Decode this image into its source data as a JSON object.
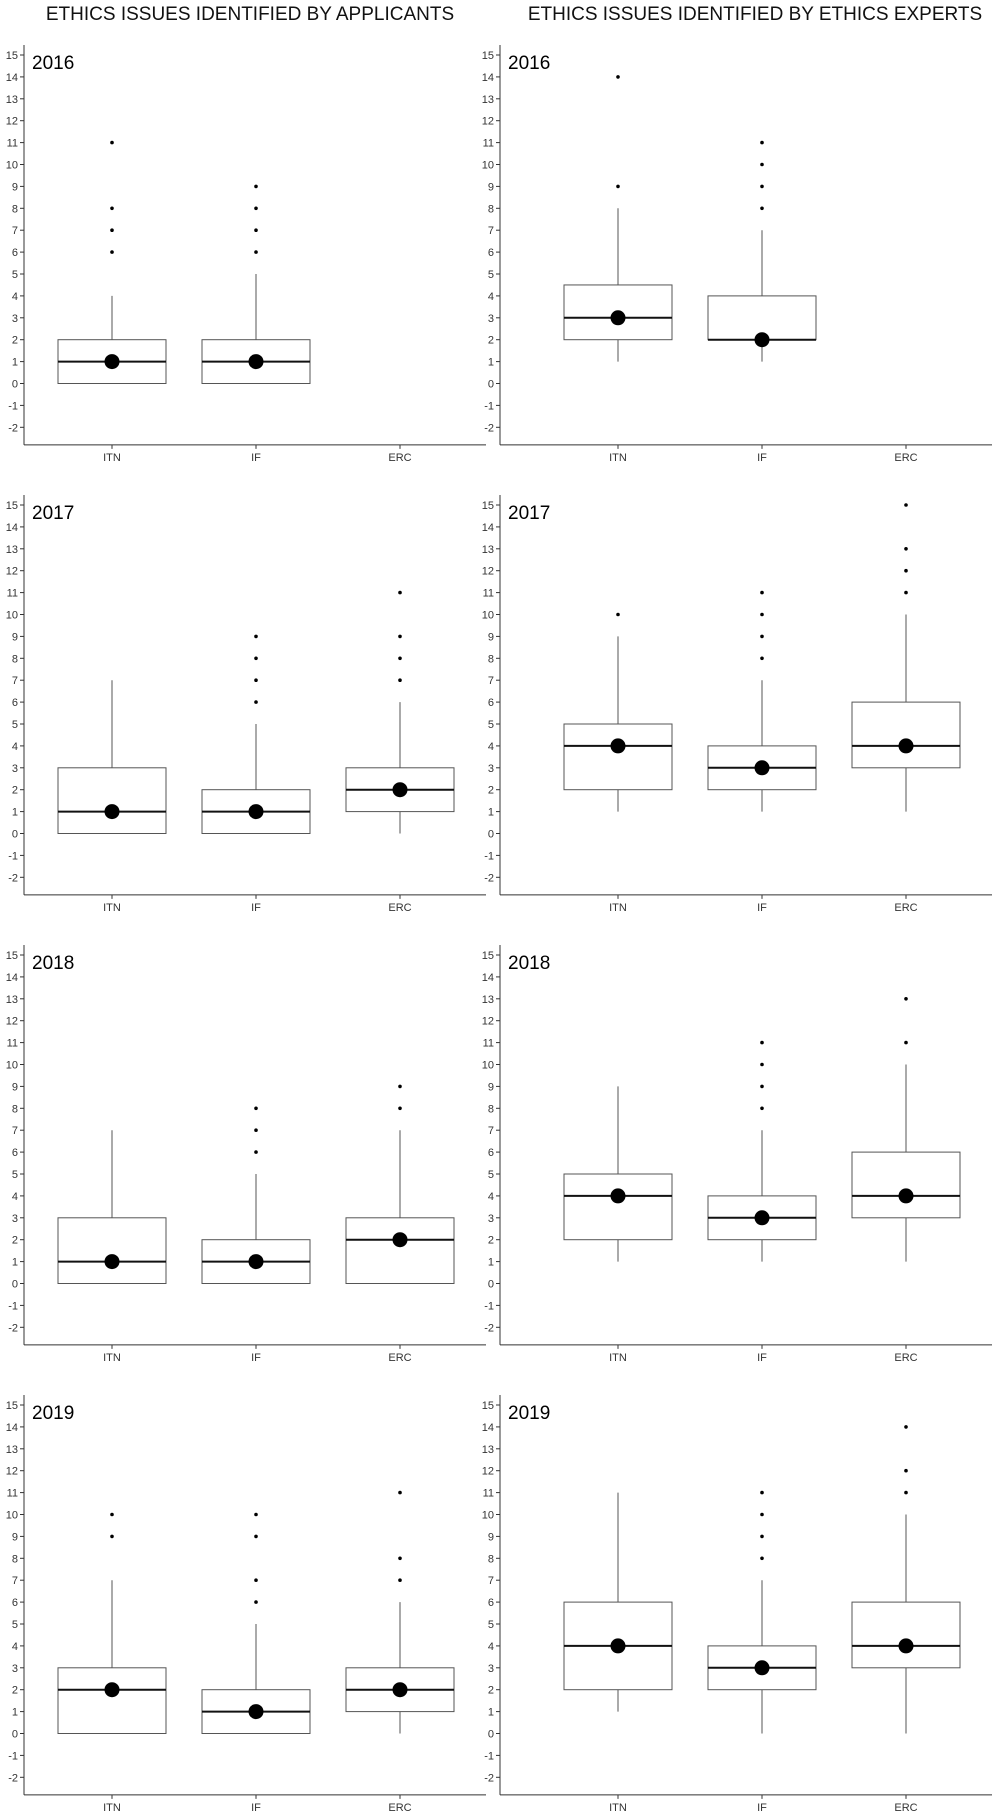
{
  "columns": [
    {
      "title": "ETHICS ISSUES IDENTIFIED BY APPLICANTS"
    },
    {
      "title": "ETHICS ISSUES IDENTIFIED BY ETHICS EXPERTS"
    }
  ],
  "chart_data": [
    {
      "type": "box",
      "column": 0,
      "year": "2016",
      "categories": [
        "ITN",
        "IF",
        "ERC"
      ],
      "ylim": [
        -2,
        15
      ],
      "boxes": [
        {
          "category": "ITN",
          "q1": 0,
          "median": 1,
          "q3": 2,
          "whisker_low": 0,
          "whisker_high": 4,
          "mean": 1,
          "outliers": [
            6,
            7,
            8,
            11
          ]
        },
        {
          "category": "IF",
          "q1": 0,
          "median": 1,
          "q3": 2,
          "whisker_low": 0,
          "whisker_high": 5,
          "mean": 1,
          "outliers": [
            6,
            7,
            8,
            9
          ]
        }
      ]
    },
    {
      "type": "box",
      "column": 1,
      "year": "2016",
      "categories": [
        "ITN",
        "IF",
        "ERC"
      ],
      "ylim": [
        -2,
        15
      ],
      "boxes": [
        {
          "category": "ITN",
          "q1": 2,
          "median": 3,
          "q3": 4.5,
          "whisker_low": 1,
          "whisker_high": 8,
          "mean": 3,
          "outliers": [
            9,
            14
          ]
        },
        {
          "category": "IF",
          "q1": 2,
          "median": 2,
          "q3": 4,
          "whisker_low": 1,
          "whisker_high": 7,
          "mean": 2,
          "outliers": [
            8,
            9,
            10,
            11
          ]
        }
      ]
    },
    {
      "type": "box",
      "column": 0,
      "year": "2017",
      "categories": [
        "ITN",
        "IF",
        "ERC"
      ],
      "ylim": [
        -2,
        15
      ],
      "boxes": [
        {
          "category": "ITN",
          "q1": 0,
          "median": 1,
          "q3": 3,
          "whisker_low": 0,
          "whisker_high": 7,
          "mean": 1,
          "outliers": []
        },
        {
          "category": "IF",
          "q1": 0,
          "median": 1,
          "q3": 2,
          "whisker_low": 0,
          "whisker_high": 5,
          "mean": 1,
          "outliers": [
            6,
            7,
            8,
            9
          ]
        },
        {
          "category": "ERC",
          "q1": 1,
          "median": 2,
          "q3": 3,
          "whisker_low": 0,
          "whisker_high": 6,
          "mean": 2,
          "outliers": [
            7,
            8,
            9,
            11
          ]
        }
      ]
    },
    {
      "type": "box",
      "column": 1,
      "year": "2017",
      "categories": [
        "ITN",
        "IF",
        "ERC"
      ],
      "ylim": [
        -2,
        15
      ],
      "boxes": [
        {
          "category": "ITN",
          "q1": 2,
          "median": 4,
          "q3": 5,
          "whisker_low": 1,
          "whisker_high": 9,
          "mean": 4,
          "outliers": [
            10
          ]
        },
        {
          "category": "IF",
          "q1": 2,
          "median": 3,
          "q3": 4,
          "whisker_low": 1,
          "whisker_high": 7,
          "mean": 3,
          "outliers": [
            8,
            9,
            10,
            11
          ]
        },
        {
          "category": "ERC",
          "q1": 3,
          "median": 4,
          "q3": 6,
          "whisker_low": 1,
          "whisker_high": 10,
          "mean": 4,
          "outliers": [
            11,
            12,
            13,
            15
          ]
        }
      ]
    },
    {
      "type": "box",
      "column": 0,
      "year": "2018",
      "categories": [
        "ITN",
        "IF",
        "ERC"
      ],
      "ylim": [
        -2,
        15
      ],
      "boxes": [
        {
          "category": "ITN",
          "q1": 0,
          "median": 1,
          "q3": 3,
          "whisker_low": 0,
          "whisker_high": 7,
          "mean": 1,
          "outliers": []
        },
        {
          "category": "IF",
          "q1": 0,
          "median": 1,
          "q3": 2,
          "whisker_low": 0,
          "whisker_high": 5,
          "mean": 1,
          "outliers": [
            6,
            7,
            8
          ]
        },
        {
          "category": "ERC",
          "q1": 0,
          "median": 2,
          "q3": 3,
          "whisker_low": 0,
          "whisker_high": 7,
          "mean": 2,
          "outliers": [
            8,
            9
          ]
        }
      ]
    },
    {
      "type": "box",
      "column": 1,
      "year": "2018",
      "categories": [
        "ITN",
        "IF",
        "ERC"
      ],
      "ylim": [
        -2,
        15
      ],
      "boxes": [
        {
          "category": "ITN",
          "q1": 2,
          "median": 4,
          "q3": 5,
          "whisker_low": 1,
          "whisker_high": 9,
          "mean": 4,
          "outliers": []
        },
        {
          "category": "IF",
          "q1": 2,
          "median": 3,
          "q3": 4,
          "whisker_low": 1,
          "whisker_high": 7,
          "mean": 3,
          "outliers": [
            8,
            9,
            10,
            11
          ]
        },
        {
          "category": "ERC",
          "q1": 3,
          "median": 4,
          "q3": 6,
          "whisker_low": 1,
          "whisker_high": 10,
          "mean": 4,
          "outliers": [
            11,
            13
          ]
        }
      ]
    },
    {
      "type": "box",
      "column": 0,
      "year": "2019",
      "categories": [
        "ITN",
        "IF",
        "ERC"
      ],
      "ylim": [
        -2,
        15
      ],
      "boxes": [
        {
          "category": "ITN",
          "q1": 0,
          "median": 2,
          "q3": 3,
          "whisker_low": 0,
          "whisker_high": 7,
          "mean": 2,
          "outliers": [
            9,
            10
          ]
        },
        {
          "category": "IF",
          "q1": 0,
          "median": 1,
          "q3": 2,
          "whisker_low": 0,
          "whisker_high": 5,
          "mean": 1,
          "outliers": [
            6,
            7,
            9,
            10
          ]
        },
        {
          "category": "ERC",
          "q1": 1,
          "median": 2,
          "q3": 3,
          "whisker_low": 0,
          "whisker_high": 6,
          "mean": 2,
          "outliers": [
            7,
            8,
            11
          ]
        }
      ]
    },
    {
      "type": "box",
      "column": 1,
      "year": "2019",
      "categories": [
        "ITN",
        "IF",
        "ERC"
      ],
      "ylim": [
        -2,
        15
      ],
      "boxes": [
        {
          "category": "ITN",
          "q1": 2,
          "median": 4,
          "q3": 6,
          "whisker_low": 1,
          "whisker_high": 11,
          "mean": 4,
          "outliers": []
        },
        {
          "category": "IF",
          "q1": 2,
          "median": 3,
          "q3": 4,
          "whisker_low": 0,
          "whisker_high": 7,
          "mean": 3,
          "outliers": [
            8,
            9,
            10,
            11
          ]
        },
        {
          "category": "ERC",
          "q1": 3,
          "median": 4,
          "q3": 6,
          "whisker_low": 0,
          "whisker_high": 10,
          "mean": 4,
          "outliers": [
            11,
            12,
            14
          ]
        }
      ]
    }
  ]
}
